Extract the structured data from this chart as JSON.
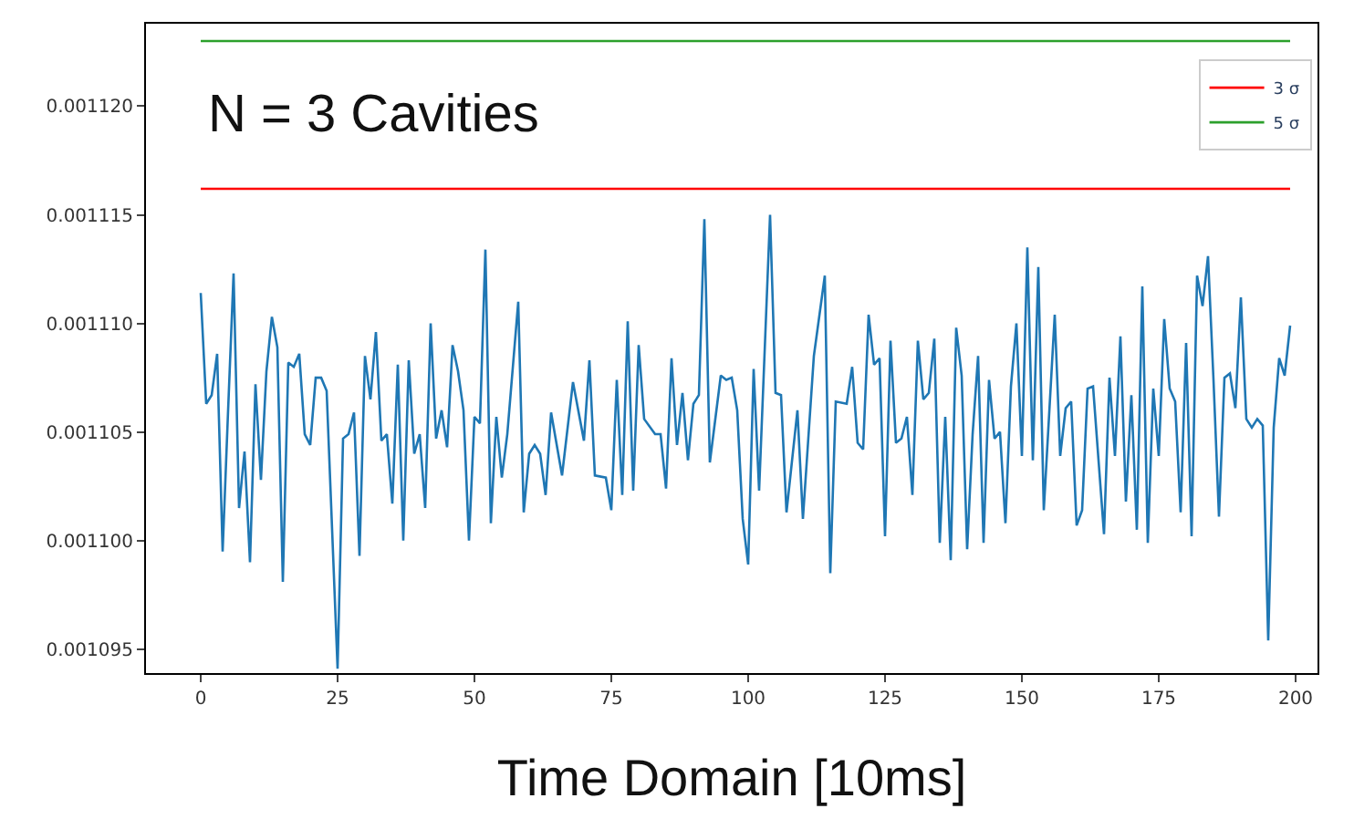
{
  "chart_data": {
    "type": "line",
    "xlabel": "Time Domain [10ms]",
    "annotations": [
      "N = 3 Cavities"
    ],
    "xlim": [
      -10,
      204
    ],
    "ylim": [
      0.0010939,
      0.0011238
    ],
    "xticks": [
      0,
      25,
      50,
      75,
      100,
      125,
      150,
      175,
      200
    ],
    "yticks": [
      0.001095,
      {
        "value": 0.0011,
        "label": "0.001100"
      },
      0.001105,
      {
        "value": 0.00111,
        "label": "0.001110"
      },
      0.001115,
      {
        "value": 0.00112,
        "label": "0.001120"
      }
    ],
    "legend": "top right",
    "marker": "none",
    "line_style": "solid",
    "series": [
      {
        "color": "#1f77b4",
        "x": [
          0,
          1,
          2,
          3,
          4,
          5,
          6,
          7,
          8,
          9,
          10,
          11,
          12,
          13,
          14,
          15,
          16,
          17,
          18,
          19,
          20,
          21,
          22,
          23,
          25,
          26,
          27,
          28,
          29,
          30,
          31,
          32,
          33,
          34,
          35,
          36,
          37,
          38,
          39,
          40,
          41,
          42,
          43,
          44,
          45,
          46,
          47,
          48,
          49,
          50,
          51,
          52,
          53,
          54,
          55,
          56,
          58,
          59,
          60,
          61,
          62,
          63,
          64,
          66,
          68,
          70,
          71,
          72,
          74,
          75,
          76,
          77,
          78,
          79,
          80,
          81,
          83,
          84,
          85,
          86,
          87,
          88,
          89,
          90,
          91,
          92,
          93,
          95,
          96,
          97,
          98,
          99,
          100,
          101,
          102,
          104,
          105,
          106,
          107,
          109,
          110,
          112,
          114,
          115,
          116,
          118,
          119,
          120,
          121,
          122,
          123,
          124,
          125,
          126,
          127,
          128,
          129,
          130,
          131,
          132,
          133,
          134,
          135,
          136,
          137,
          138,
          139,
          140,
          141,
          142,
          143,
          144,
          145,
          146,
          147,
          148,
          149,
          150,
          151,
          152,
          153,
          154,
          156,
          157,
          158,
          159,
          160,
          161,
          162,
          163,
          165,
          166,
          167,
          168,
          169,
          170,
          171,
          172,
          173,
          174,
          175,
          176,
          177,
          178,
          179,
          180,
          181,
          182,
          183,
          184,
          185,
          186,
          187,
          188,
          189,
          190,
          191,
          192,
          193,
          194,
          195,
          196,
          197,
          198,
          199
        ],
        "values": [
          0.0011114,
          0.0011063,
          0.0011067,
          0.0011086,
          0.0010995,
          0.001106,
          0.0011123,
          0.0011015,
          0.0011041,
          0.001099,
          0.0011072,
          0.0011028,
          0.0011078,
          0.0011103,
          0.0011089,
          0.0010981,
          0.0011082,
          0.001108,
          0.0011086,
          0.0011049,
          0.0011044,
          0.0011075,
          0.0011075,
          0.0011069,
          0.0010941,
          0.0011047,
          0.0011049,
          0.0011059,
          0.0010993,
          0.0011085,
          0.0011065,
          0.0011096,
          0.0011046,
          0.0011049,
          0.0011017,
          0.0011081,
          0.0011,
          0.0011083,
          0.001104,
          0.0011049,
          0.0011015,
          0.00111,
          0.0011047,
          0.001106,
          0.0011043,
          0.001109,
          0.0011078,
          0.001106,
          0.0011,
          0.0011057,
          0.0011054,
          0.0011134,
          0.0011008,
          0.0011057,
          0.0011029,
          0.0011049,
          0.001111,
          0.0011013,
          0.001104,
          0.0011044,
          0.001104,
          0.0011021,
          0.0011059,
          0.001103,
          0.0011073,
          0.0011046,
          0.0011083,
          0.001103,
          0.0011029,
          0.0011014,
          0.0011074,
          0.0011021,
          0.0011101,
          0.0011023,
          0.001109,
          0.0011056,
          0.0011049,
          0.0011049,
          0.0011024,
          0.0011084,
          0.0011044,
          0.0011068,
          0.0011037,
          0.0011063,
          0.0011067,
          0.0011148,
          0.0011036,
          0.0011076,
          0.0011074,
          0.0011075,
          0.001106,
          0.001101,
          0.0010989,
          0.0011079,
          0.0011023,
          0.001115,
          0.0011068,
          0.0011067,
          0.0011013,
          0.001106,
          0.001101,
          0.0011085,
          0.0011122,
          0.0010985,
          0.0011064,
          0.0011063,
          0.001108,
          0.0011045,
          0.0011042,
          0.0011104,
          0.0011081,
          0.0011084,
          0.0011002,
          0.0011092,
          0.0011045,
          0.0011047,
          0.0011057,
          0.0011021,
          0.0011092,
          0.0011065,
          0.0011068,
          0.0011093,
          0.0010999,
          0.0011057,
          0.0010991,
          0.0011098,
          0.0011076,
          0.0010996,
          0.0011049,
          0.0011085,
          0.0010999,
          0.0011074,
          0.0011047,
          0.001105,
          0.0011008,
          0.0011071,
          0.00111,
          0.0011039,
          0.0011135,
          0.0011037,
          0.0011126,
          0.0011014,
          0.0011104,
          0.0011039,
          0.0011061,
          0.0011064,
          0.0011007,
          0.0011014,
          0.001107,
          0.0011071,
          0.0011003,
          0.0011075,
          0.0011039,
          0.0011094,
          0.0011018,
          0.0011067,
          0.0011005,
          0.0011117,
          0.0010999,
          0.001107,
          0.0011039,
          0.0011102,
          0.001107,
          0.0011064,
          0.0011013,
          0.0011091,
          0.0011002,
          0.0011122,
          0.0011108,
          0.0011131,
          0.0011074,
          0.0011011,
          0.0011075,
          0.0011077,
          0.0011061,
          0.0011112,
          0.0011056,
          0.0011052,
          0.0011056,
          0.0011053,
          0.0010954,
          0.0011052,
          0.0011084,
          0.0011076,
          0.0011099
        ]
      },
      {
        "name": "3 σ",
        "color": "#ff0000",
        "x": [
          0,
          199
        ],
        "values": [
          0.0011162,
          0.0011162
        ]
      },
      {
        "name": "5 σ",
        "color": "#2ca02c",
        "x": [
          0,
          199
        ],
        "values": [
          0.001123,
          0.001123
        ]
      }
    ]
  }
}
